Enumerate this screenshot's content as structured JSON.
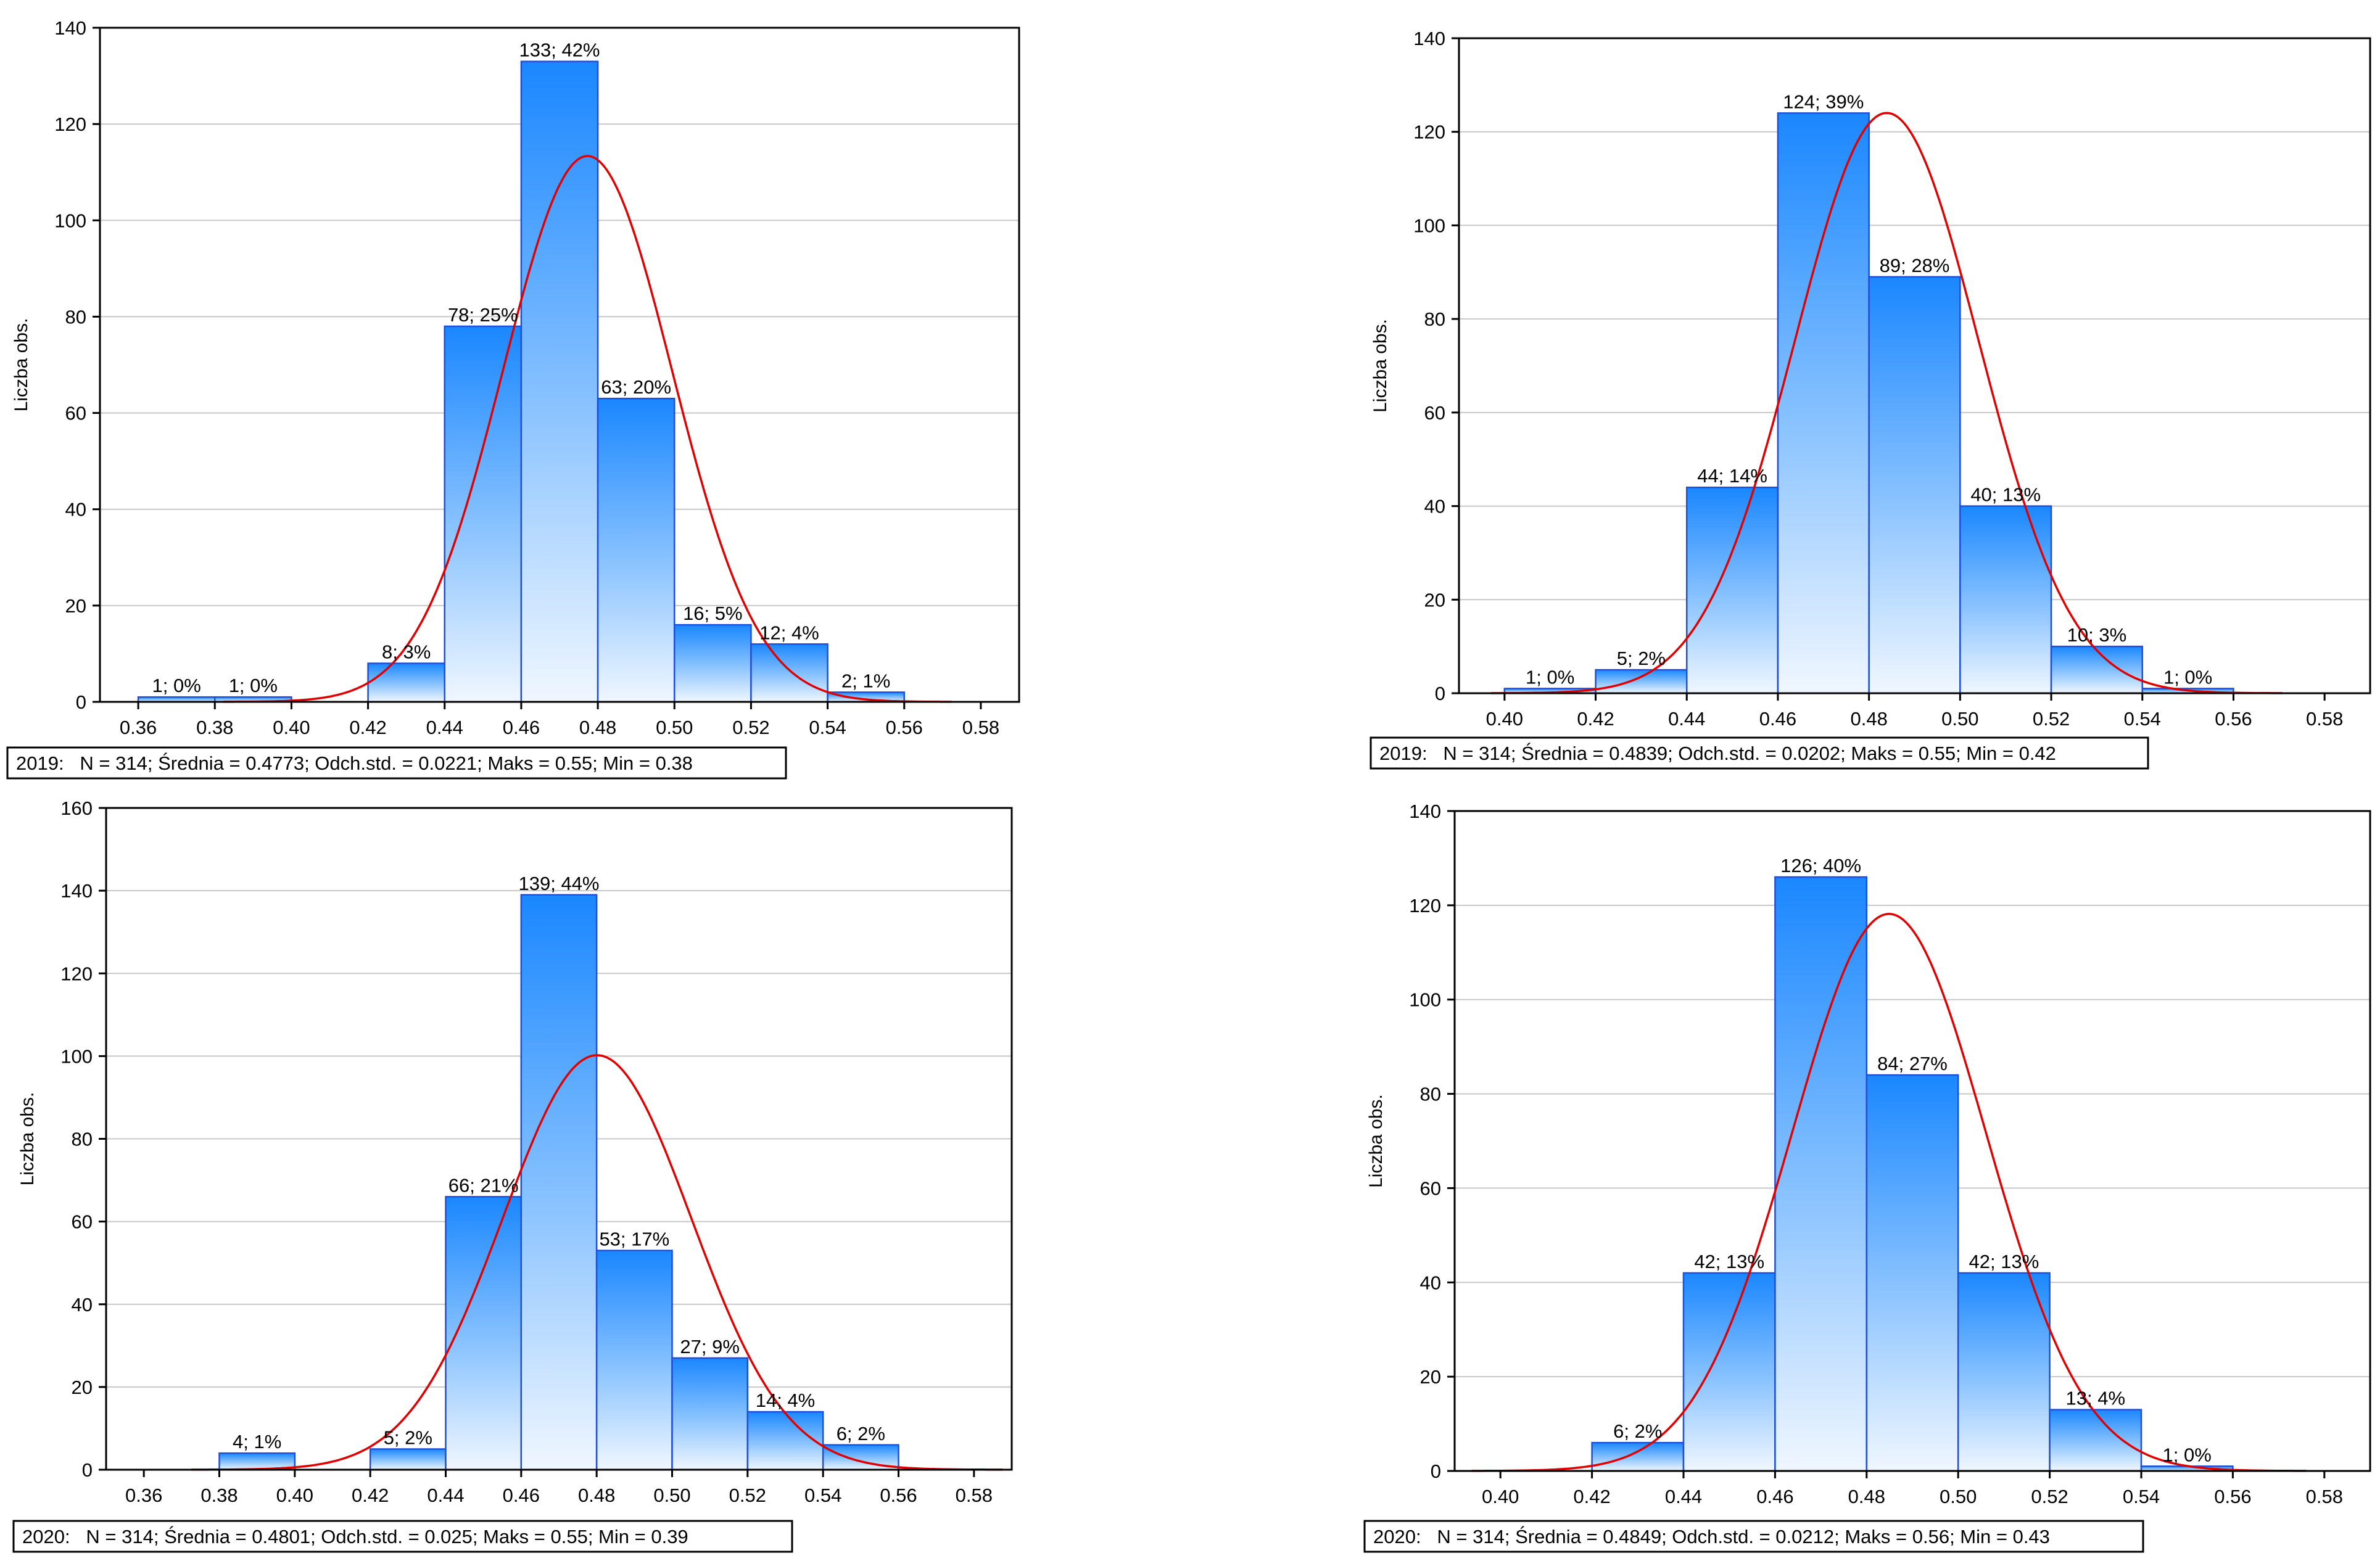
{
  "chart_data": [
    {
      "type": "bar",
      "ylabel": "Liczba obs.",
      "ylim": [
        0,
        140
      ],
      "yticks": [
        0,
        20,
        40,
        60,
        80,
        100,
        120,
        140
      ],
      "xticks": [
        "0.36",
        "0.38",
        "0.40",
        "0.42",
        "0.44",
        "0.46",
        "0.48",
        "0.50",
        "0.52",
        "0.54",
        "0.56",
        "0.58"
      ],
      "xrange": [
        0.35,
        0.59
      ],
      "bins": [
        {
          "from": 0.36,
          "to": 0.38,
          "count": 1,
          "label": "1; 0%"
        },
        {
          "from": 0.38,
          "to": 0.4,
          "count": 1,
          "label": "1; 0%"
        },
        {
          "from": 0.42,
          "to": 0.44,
          "count": 8,
          "label": "8; 3%"
        },
        {
          "from": 0.44,
          "to": 0.46,
          "count": 78,
          "label": "78; 25%"
        },
        {
          "from": 0.46,
          "to": 0.48,
          "count": 133,
          "label": "133; 42%"
        },
        {
          "from": 0.48,
          "to": 0.5,
          "count": 63,
          "label": "63; 20%"
        },
        {
          "from": 0.5,
          "to": 0.52,
          "count": 16,
          "label": "16; 5%"
        },
        {
          "from": 0.52,
          "to": 0.54,
          "count": 12,
          "label": "12; 4%"
        },
        {
          "from": 0.54,
          "to": 0.56,
          "count": 2,
          "label": "2; 1%"
        }
      ],
      "normal": {
        "mean": 0.4773,
        "sd": 0.0221,
        "n": 314,
        "binwidth": 0.02
      },
      "caption": "2019:   N = 314; Średnia = 0.4773; Odch.std. = 0.0221; Maks = 0.55; Min = 0.38"
    },
    {
      "type": "bar",
      "ylabel": "Liczba obs.",
      "ylim": [
        0,
        140
      ],
      "yticks": [
        0,
        20,
        40,
        60,
        80,
        100,
        120,
        140
      ],
      "xticks": [
        "0.40",
        "0.42",
        "0.44",
        "0.46",
        "0.48",
        "0.50",
        "0.52",
        "0.54",
        "0.56",
        "0.58"
      ],
      "xrange": [
        0.39,
        0.59
      ],
      "bins": [
        {
          "from": 0.4,
          "to": 0.42,
          "count": 1,
          "label": "1; 0%"
        },
        {
          "from": 0.42,
          "to": 0.44,
          "count": 5,
          "label": "5; 2%"
        },
        {
          "from": 0.44,
          "to": 0.46,
          "count": 44,
          "label": "44; 14%"
        },
        {
          "from": 0.46,
          "to": 0.48,
          "count": 124,
          "label": "124; 39%"
        },
        {
          "from": 0.48,
          "to": 0.5,
          "count": 89,
          "label": "89; 28%"
        },
        {
          "from": 0.5,
          "to": 0.52,
          "count": 40,
          "label": "40; 13%"
        },
        {
          "from": 0.52,
          "to": 0.54,
          "count": 10,
          "label": "10; 3%"
        },
        {
          "from": 0.54,
          "to": 0.56,
          "count": 1,
          "label": "1; 0%"
        }
      ],
      "normal": {
        "mean": 0.4839,
        "sd": 0.0202,
        "n": 314,
        "binwidth": 0.02
      },
      "caption": "2019:   N = 314; Średnia = 0.4839; Odch.std. = 0.0202; Maks = 0.55; Min = 0.42"
    },
    {
      "type": "bar",
      "ylabel": "Liczba obs.",
      "ylim": [
        0,
        160
      ],
      "yticks": [
        0,
        20,
        40,
        60,
        80,
        100,
        120,
        140,
        160
      ],
      "xticks": [
        "0.36",
        "0.38",
        "0.40",
        "0.42",
        "0.44",
        "0.46",
        "0.48",
        "0.50",
        "0.52",
        "0.54",
        "0.56",
        "0.58"
      ],
      "xrange": [
        0.35,
        0.59
      ],
      "bins": [
        {
          "from": 0.38,
          "to": 0.4,
          "count": 4,
          "label": "4; 1%"
        },
        {
          "from": 0.42,
          "to": 0.44,
          "count": 5,
          "label": "5; 2%"
        },
        {
          "from": 0.44,
          "to": 0.46,
          "count": 66,
          "label": "66; 21%"
        },
        {
          "from": 0.46,
          "to": 0.48,
          "count": 139,
          "label": "139; 44%"
        },
        {
          "from": 0.48,
          "to": 0.5,
          "count": 53,
          "label": "53; 17%"
        },
        {
          "from": 0.5,
          "to": 0.52,
          "count": 27,
          "label": "27; 9%"
        },
        {
          "from": 0.52,
          "to": 0.54,
          "count": 14,
          "label": "14; 4%"
        },
        {
          "from": 0.54,
          "to": 0.56,
          "count": 6,
          "label": "6; 2%"
        }
      ],
      "normal": {
        "mean": 0.4801,
        "sd": 0.025,
        "n": 314,
        "binwidth": 0.02
      },
      "caption": "2020:   N = 314; Średnia = 0.4801; Odch.std. = 0.025; Maks = 0.55; Min = 0.39"
    },
    {
      "type": "bar",
      "ylabel": "Liczba obs.",
      "ylim": [
        0,
        140
      ],
      "yticks": [
        0,
        20,
        40,
        60,
        80,
        100,
        120,
        140
      ],
      "xticks": [
        "0.40",
        "0.42",
        "0.44",
        "0.46",
        "0.48",
        "0.50",
        "0.52",
        "0.54",
        "0.56",
        "0.58"
      ],
      "xrange": [
        0.39,
        0.59
      ],
      "bins": [
        {
          "from": 0.42,
          "to": 0.44,
          "count": 6,
          "label": "6; 2%"
        },
        {
          "from": 0.44,
          "to": 0.46,
          "count": 42,
          "label": "42; 13%"
        },
        {
          "from": 0.46,
          "to": 0.48,
          "count": 126,
          "label": "126; 40%"
        },
        {
          "from": 0.48,
          "to": 0.5,
          "count": 84,
          "label": "84; 27%"
        },
        {
          "from": 0.5,
          "to": 0.52,
          "count": 42,
          "label": "42; 13%"
        },
        {
          "from": 0.52,
          "to": 0.54,
          "count": 13,
          "label": "13; 4%"
        },
        {
          "from": 0.54,
          "to": 0.56,
          "count": 1,
          "label": "1; 0%"
        }
      ],
      "normal": {
        "mean": 0.4849,
        "sd": 0.0212,
        "n": 314,
        "binwidth": 0.02
      },
      "caption": "2020:   N = 314; Średnia = 0.4849; Odch.std. = 0.0212; Maks = 0.56; Min = 0.43"
    }
  ],
  "colors": {
    "bar_top": "#1a87ff",
    "bar_bottom": "#f0f7ff",
    "bar_stroke": "#1f4fd6",
    "curve": "#e00000",
    "grid": "#c8c8c8",
    "text": "#000000"
  }
}
